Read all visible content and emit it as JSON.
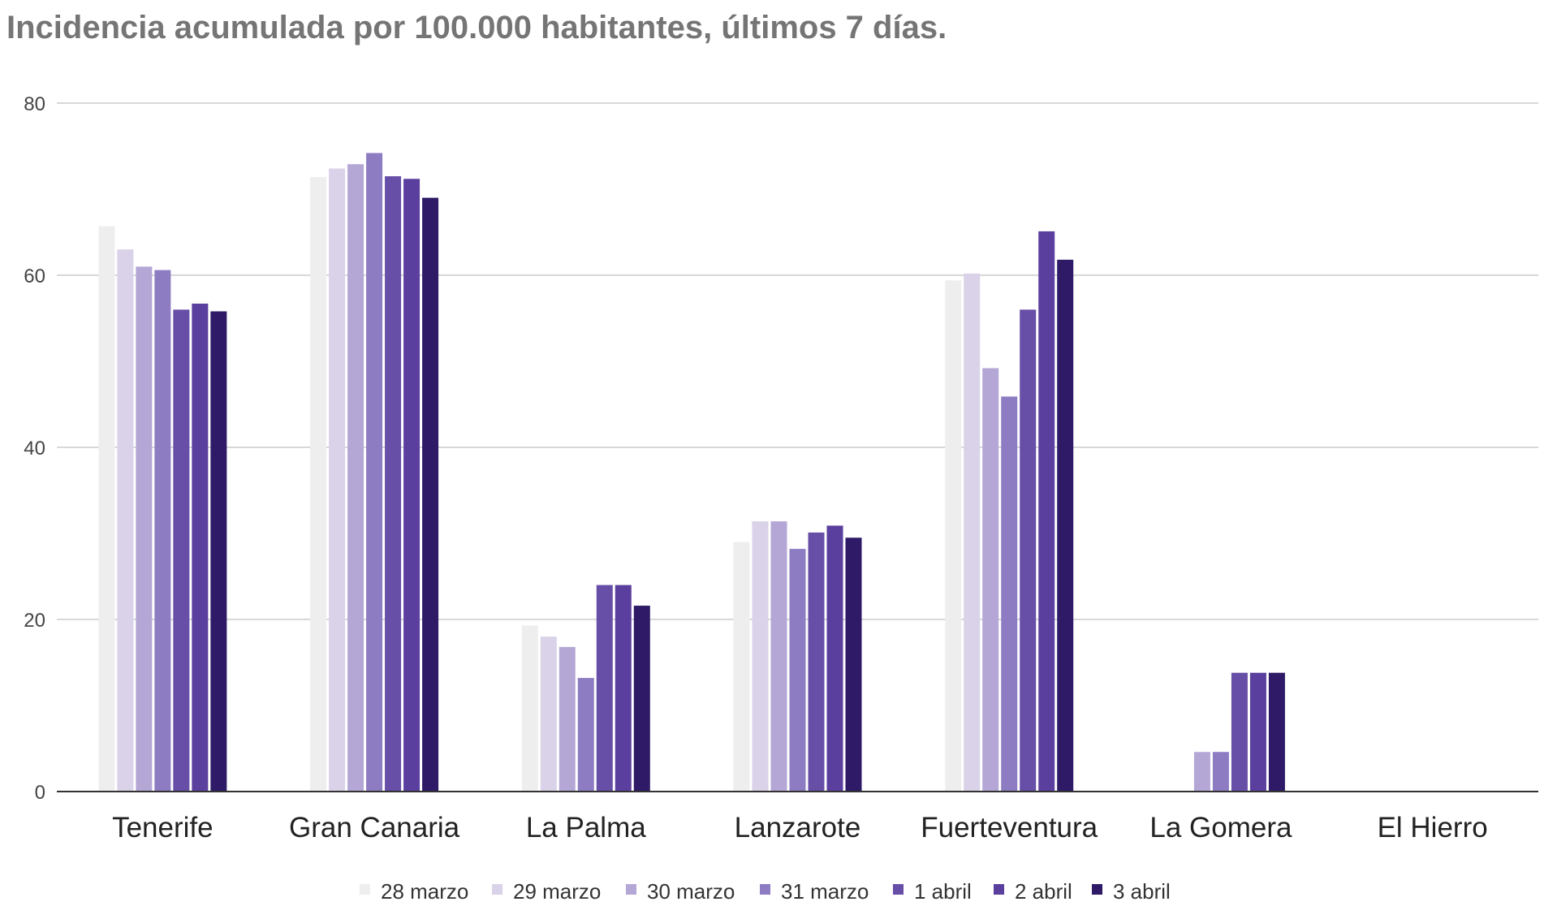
{
  "chart_data": {
    "type": "bar",
    "title": "Incidencia acumulada por 100.000 habitantes, últimos 7 días.",
    "xlabel": "",
    "ylabel": "",
    "ylim": [
      0,
      80
    ],
    "yticks": [
      "0",
      "20",
      "40",
      "60",
      "80"
    ],
    "grid": true,
    "legend_position": "bottom",
    "categories": [
      "Tenerife",
      "Gran Canaria",
      "La Palma",
      "Lanzarote",
      "Fuerteventura",
      "La Gomera",
      "El Hierro"
    ],
    "series": [
      {
        "name": "28 marzo",
        "color": "#eeeeee",
        "values": [
          65.7,
          71.4,
          19.3,
          29.0,
          59.4,
          0,
          0
        ]
      },
      {
        "name": "29 marzo",
        "color": "#d9d2e9",
        "values": [
          63.0,
          72.4,
          18.0,
          31.4,
          60.2,
          0,
          0
        ]
      },
      {
        "name": "30 marzo",
        "color": "#b4a7d6",
        "values": [
          61.0,
          72.9,
          16.8,
          31.4,
          49.2,
          4.6,
          0
        ]
      },
      {
        "name": "31 marzo",
        "color": "#8e7cc3",
        "values": [
          60.6,
          74.2,
          13.2,
          28.2,
          45.9,
          4.6,
          0
        ]
      },
      {
        "name": "1 abril",
        "color": "#674ea7",
        "values": [
          56.0,
          71.5,
          24.0,
          30.1,
          56.0,
          13.8,
          0
        ]
      },
      {
        "name": "2 abril",
        "color": "#5b3f9e",
        "values": [
          56.7,
          71.2,
          24.0,
          30.9,
          65.1,
          13.8,
          0
        ]
      },
      {
        "name": "3 abril",
        "color": "#2e1a66",
        "values": [
          55.8,
          69.0,
          21.6,
          29.5,
          61.8,
          13.8,
          0
        ]
      }
    ]
  }
}
